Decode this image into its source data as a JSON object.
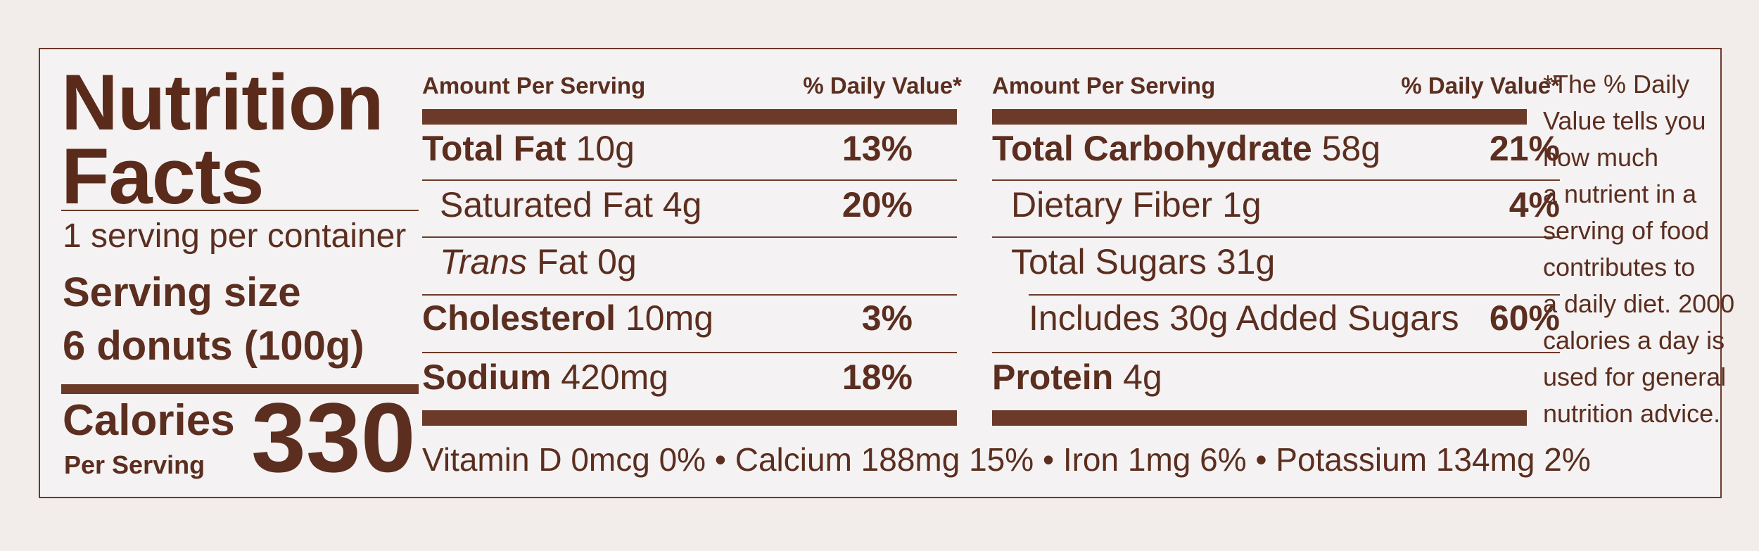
{
  "title": {
    "line1": "Nutrition",
    "line2": "Facts"
  },
  "servings_per_container": "1 serving per container",
  "serving_size": {
    "label": "Serving size",
    "value": "6 donuts (100g)"
  },
  "calories": {
    "label": "Calories",
    "sublabel": "Per Serving",
    "value": "330"
  },
  "left_table": {
    "header": {
      "amount": "Amount Per Serving",
      "dv": "% Daily Value*"
    },
    "rows": [
      {
        "name": "Total Fat",
        "amount": "10g",
        "dv": "13%"
      },
      {
        "name": "Saturated Fat",
        "amount": "4g",
        "dv": "20%"
      },
      {
        "name_italic": "Trans",
        "name": "Fat",
        "amount": "0g",
        "dv": ""
      },
      {
        "name": "Cholesterol",
        "amount": "10mg",
        "dv": "3%"
      },
      {
        "name": "Sodium",
        "amount": "420mg",
        "dv": "18%"
      }
    ]
  },
  "right_table": {
    "header": {
      "amount": "Amount Per Serving",
      "dv": "% Daily Value*"
    },
    "rows": [
      {
        "name": "Total Carbohydrate",
        "amount": "58g",
        "dv": "21%"
      },
      {
        "name": "Dietary Fiber",
        "amount": "1g",
        "dv": "4%"
      },
      {
        "name": "Total Sugars",
        "amount": "31g",
        "dv": ""
      },
      {
        "name": "Includes 30g Added Sugars",
        "amount": "",
        "dv": "60%"
      },
      {
        "name": "Protein",
        "amount": "4g",
        "dv": ""
      }
    ]
  },
  "vitamins": "Vitamin D 0mcg 0% • Calcium 188mg 15% • Iron 1mg 6% • Potassium 134mg 2%",
  "footnote": [
    "*The % Daily",
    "Value tells you",
    "how much",
    "a nutrient in a",
    "serving of food",
    "contributes to",
    "a daily diet. 2000",
    "calories a day is",
    "used  for general",
    "nutrition advice."
  ]
}
